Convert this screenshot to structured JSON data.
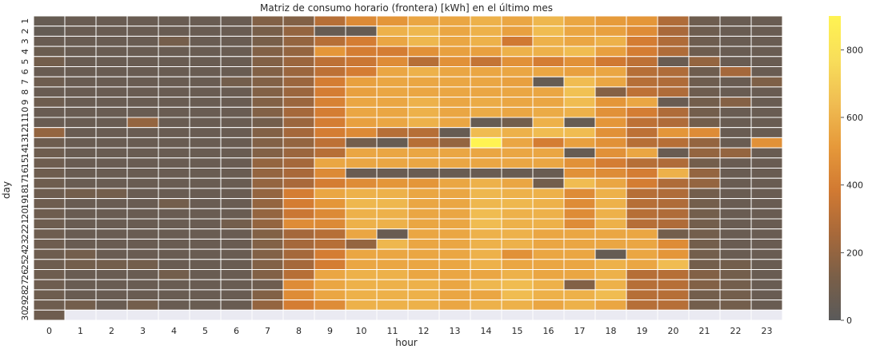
{
  "chart_data": {
    "type": "heatmap",
    "title": "Matriz de consumo horario (frontera) [kWh] en el último mes",
    "xlabel": "hour",
    "ylabel": "day",
    "x": [
      "0",
      "1",
      "2",
      "3",
      "4",
      "5",
      "6",
      "7",
      "8",
      "9",
      "10",
      "11",
      "12",
      "13",
      "14",
      "15",
      "16",
      "17",
      "18",
      "19",
      "20",
      "21",
      "22",
      "23"
    ],
    "y": [
      "1",
      "2",
      "3",
      "4",
      "5",
      "6",
      "7",
      "8",
      "9",
      "10",
      "11",
      "12",
      "13",
      "14",
      "15",
      "16",
      "17",
      "18",
      "19",
      "20",
      "21",
      "22",
      "23",
      "24",
      "25",
      "26",
      "27",
      "28",
      "29",
      "30"
    ],
    "colorbar": {
      "min": 0,
      "max": 900,
      "ticks": [
        0,
        200,
        400,
        600,
        800
      ]
    },
    "colormap": [
      "#5a5a5a",
      "#7a5f48",
      "#a8693a",
      "#d27a32",
      "#e6993a",
      "#f0bd52",
      "#f8de5a",
      "#fff352"
    ],
    "missing_color": "#eaeaf2",
    "values": [
      [
        50,
        60,
        60,
        60,
        60,
        60,
        60,
        150,
        150,
        300,
        450,
        500,
        560,
        560,
        600,
        560,
        620,
        560,
        520,
        500,
        280,
        80,
        60,
        60
      ],
      [
        40,
        60,
        60,
        60,
        60,
        60,
        60,
        120,
        200,
        50,
        50,
        600,
        620,
        560,
        600,
        540,
        640,
        560,
        540,
        460,
        260,
        80,
        60,
        60
      ],
      [
        60,
        60,
        60,
        60,
        110,
        60,
        60,
        120,
        200,
        300,
        400,
        560,
        620,
        560,
        600,
        380,
        600,
        560,
        600,
        400,
        280,
        80,
        60,
        60
      ],
      [
        70,
        60,
        60,
        60,
        60,
        60,
        60,
        150,
        200,
        500,
        400,
        400,
        480,
        540,
        540,
        600,
        600,
        640,
        540,
        400,
        280,
        80,
        60,
        60
      ],
      [
        100,
        60,
        60,
        60,
        60,
        60,
        60,
        150,
        220,
        320,
        360,
        460,
        300,
        480,
        340,
        480,
        400,
        480,
        380,
        320,
        60,
        200,
        60,
        60
      ],
      [
        60,
        60,
        60,
        60,
        60,
        60,
        60,
        150,
        220,
        320,
        400,
        560,
        600,
        560,
        560,
        560,
        560,
        540,
        560,
        300,
        280,
        80,
        250,
        60
      ],
      [
        80,
        60,
        60,
        60,
        60,
        60,
        100,
        150,
        220,
        400,
        540,
        560,
        560,
        560,
        560,
        540,
        50,
        640,
        560,
        300,
        280,
        80,
        60,
        140
      ],
      [
        60,
        60,
        60,
        60,
        60,
        60,
        60,
        150,
        220,
        400,
        540,
        560,
        560,
        560,
        560,
        560,
        560,
        660,
        160,
        320,
        280,
        80,
        60,
        60
      ],
      [
        80,
        60,
        60,
        60,
        60,
        60,
        60,
        150,
        220,
        420,
        560,
        560,
        600,
        560,
        580,
        560,
        560,
        640,
        500,
        560,
        60,
        100,
        160,
        60
      ],
      [
        60,
        60,
        60,
        60,
        60,
        60,
        60,
        150,
        250,
        400,
        560,
        560,
        600,
        560,
        580,
        560,
        580,
        600,
        480,
        400,
        280,
        100,
        60,
        60
      ],
      [
        60,
        60,
        60,
        200,
        60,
        60,
        60,
        100,
        220,
        400,
        540,
        560,
        600,
        560,
        50,
        100,
        600,
        50,
        500,
        320,
        280,
        100,
        60,
        60
      ],
      [
        200,
        60,
        60,
        60,
        60,
        60,
        60,
        150,
        250,
        400,
        450,
        300,
        300,
        50,
        640,
        600,
        640,
        640,
        480,
        320,
        500,
        460,
        60,
        60
      ],
      [
        80,
        60,
        60,
        60,
        60,
        60,
        60,
        150,
        200,
        320,
        100,
        50,
        300,
        200,
        900,
        560,
        400,
        540,
        480,
        300,
        300,
        200,
        60,
        480
      ],
      [
        80,
        60,
        60,
        60,
        60,
        60,
        60,
        150,
        220,
        300,
        560,
        560,
        560,
        560,
        560,
        560,
        560,
        50,
        480,
        560,
        60,
        200,
        200,
        60
      ],
      [
        80,
        60,
        60,
        60,
        60,
        60,
        60,
        200,
        250,
        560,
        560,
        560,
        560,
        560,
        560,
        560,
        560,
        480,
        400,
        300,
        280,
        100,
        60,
        60
      ],
      [
        80,
        60,
        60,
        60,
        60,
        60,
        60,
        200,
        260,
        450,
        60,
        60,
        60,
        60,
        60,
        60,
        60,
        480,
        460,
        400,
        600,
        200,
        60,
        60
      ],
      [
        80,
        60,
        60,
        60,
        60,
        60,
        60,
        200,
        260,
        400,
        460,
        500,
        500,
        560,
        600,
        560,
        100,
        640,
        560,
        400,
        280,
        200,
        60,
        60
      ],
      [
        80,
        100,
        100,
        60,
        60,
        60,
        60,
        200,
        400,
        560,
        600,
        600,
        560,
        560,
        620,
        600,
        600,
        460,
        600,
        300,
        280,
        100,
        60,
        60
      ],
      [
        80,
        60,
        60,
        60,
        100,
        60,
        60,
        200,
        400,
        500,
        620,
        620,
        560,
        560,
        620,
        620,
        600,
        460,
        600,
        300,
        280,
        100,
        60,
        60
      ],
      [
        80,
        60,
        60,
        60,
        60,
        60,
        60,
        200,
        360,
        450,
        600,
        600,
        560,
        560,
        640,
        600,
        600,
        460,
        600,
        300,
        280,
        100,
        60,
        60
      ],
      [
        80,
        60,
        60,
        60,
        60,
        60,
        100,
        200,
        460,
        450,
        600,
        600,
        560,
        560,
        640,
        600,
        600,
        460,
        600,
        300,
        280,
        100,
        60,
        60
      ],
      [
        80,
        60,
        60,
        60,
        60,
        60,
        60,
        150,
        250,
        300,
        560,
        60,
        560,
        560,
        600,
        600,
        560,
        560,
        560,
        560,
        100,
        100,
        60,
        60
      ],
      [
        80,
        60,
        60,
        60,
        60,
        60,
        60,
        150,
        250,
        300,
        200,
        620,
        560,
        560,
        600,
        600,
        560,
        560,
        560,
        560,
        460,
        100,
        60,
        60
      ],
      [
        80,
        100,
        60,
        60,
        60,
        60,
        60,
        150,
        250,
        400,
        560,
        560,
        560,
        560,
        600,
        480,
        560,
        560,
        50,
        560,
        500,
        100,
        60,
        60
      ],
      [
        80,
        100,
        100,
        100,
        60,
        60,
        60,
        150,
        250,
        400,
        560,
        560,
        560,
        560,
        600,
        560,
        560,
        560,
        600,
        560,
        640,
        100,
        100,
        60
      ],
      [
        80,
        60,
        60,
        60,
        100,
        60,
        60,
        150,
        300,
        560,
        600,
        600,
        560,
        560,
        560,
        600,
        560,
        560,
        600,
        300,
        300,
        150,
        100,
        60
      ],
      [
        80,
        60,
        60,
        60,
        60,
        60,
        60,
        80,
        460,
        560,
        600,
        600,
        600,
        560,
        620,
        640,
        600,
        150,
        600,
        300,
        300,
        150,
        100,
        60
      ],
      [
        80,
        60,
        60,
        60,
        60,
        60,
        60,
        150,
        460,
        560,
        600,
        600,
        600,
        560,
        560,
        640,
        600,
        600,
        640,
        300,
        300,
        100,
        100,
        60
      ],
      [
        80,
        100,
        60,
        100,
        60,
        60,
        60,
        200,
        400,
        460,
        600,
        600,
        600,
        560,
        600,
        600,
        560,
        600,
        560,
        300,
        300,
        100,
        100,
        60
      ],
      [
        80,
        null,
        null,
        null,
        null,
        null,
        null,
        null,
        null,
        null,
        null,
        null,
        null,
        null,
        null,
        null,
        null,
        null,
        null,
        null,
        null,
        null,
        null,
        null
      ]
    ]
  }
}
